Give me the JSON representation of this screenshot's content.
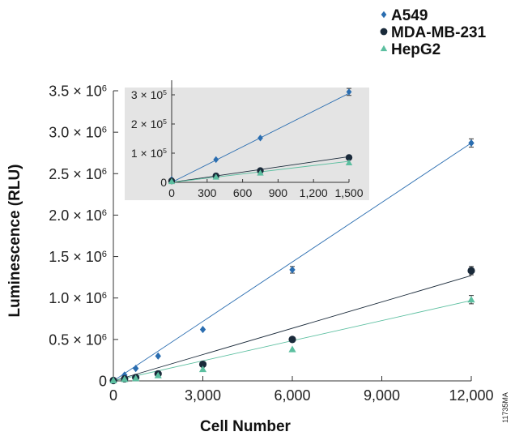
{
  "chart_data": [
    {
      "type": "scatter",
      "title": "",
      "xlabel": "Cell Number",
      "ylabel": "Luminescence (RLU)",
      "xlim": [
        0,
        12000
      ],
      "ylim": [
        0,
        3500000
      ],
      "xticks": [
        0,
        3000,
        6000,
        9000,
        12000
      ],
      "xtick_labels": [
        "0",
        "3,000",
        "6,000",
        "9,000",
        "12,000"
      ],
      "yticks": [
        0,
        500000,
        1000000,
        1500000,
        2000000,
        2500000,
        3000000,
        3500000
      ],
      "ytick_labels": [
        {
          "mant": "0",
          "exp": ""
        },
        {
          "mant": "0.5 × 10",
          "exp": "6"
        },
        {
          "mant": "1.0 × 10",
          "exp": "6"
        },
        {
          "mant": "1.5 × 10",
          "exp": "6"
        },
        {
          "mant": "2.0 × 10",
          "exp": "6"
        },
        {
          "mant": "2.5 × 10",
          "exp": "6"
        },
        {
          "mant": "3.0 × 10",
          "exp": "6"
        },
        {
          "mant": "3.5 × 10",
          "exp": "6"
        }
      ],
      "grid": false,
      "legend_position": "top-right",
      "series": [
        {
          "name": "A549",
          "marker": "diamond",
          "color": "#2a6db0",
          "x": [
            0,
            375,
            750,
            1500,
            3000,
            6000,
            12000
          ],
          "y": [
            5000,
            70000,
            150000,
            300000,
            620000,
            1340000,
            2870000
          ],
          "err": [
            0,
            0,
            0,
            0,
            0,
            40000,
            50000
          ],
          "fit": [
            [
              0,
              0
            ],
            [
              12000,
              2870000
            ]
          ]
        },
        {
          "name": "MDA-MB-231",
          "marker": "circle",
          "color": "#1a2a3a",
          "x": [
            0,
            375,
            750,
            1500,
            3000,
            6000,
            12000
          ],
          "y": [
            5000,
            25000,
            40000,
            85000,
            200000,
            500000,
            1330000
          ],
          "err": [
            0,
            0,
            0,
            0,
            0,
            0,
            50000
          ],
          "fit": [
            [
              0,
              0
            ],
            [
              12000,
              1270000
            ]
          ]
        },
        {
          "name": "HepG2",
          "marker": "triangle",
          "color": "#5cbfa0",
          "x": [
            0,
            375,
            750,
            1500,
            3000,
            6000,
            12000
          ],
          "y": [
            5000,
            20000,
            30000,
            65000,
            140000,
            380000,
            980000
          ],
          "err": [
            0,
            0,
            0,
            0,
            0,
            0,
            50000
          ],
          "fit": [
            [
              0,
              0
            ],
            [
              12000,
              970000
            ]
          ]
        }
      ]
    },
    {
      "type": "scatter",
      "title": "",
      "xlabel": "",
      "ylabel": "",
      "xlim": [
        0,
        1500
      ],
      "ylim": [
        0,
        350000
      ],
      "xticks": [
        0,
        300,
        600,
        900,
        1200,
        1500
      ],
      "xtick_labels": [
        "0",
        "300",
        "600",
        "900",
        "1,200",
        "1,500"
      ],
      "yticks": [
        0,
        100000,
        200000,
        300000
      ],
      "ytick_labels": [
        {
          "mant": "0",
          "exp": ""
        },
        {
          "mant": "1 × 10",
          "exp": "5"
        },
        {
          "mant": "2 × 10",
          "exp": "5"
        },
        {
          "mant": "3 × 10",
          "exp": "5"
        }
      ],
      "grid": false,
      "background": "#e4e4e4",
      "series": [
        {
          "name": "A549",
          "marker": "diamond",
          "color": "#2a6db0",
          "x": [
            0,
            375,
            750,
            1500
          ],
          "y": [
            10000,
            78000,
            152000,
            310000
          ],
          "err": [
            0,
            0,
            0,
            12000
          ],
          "fit": [
            [
              0,
              0
            ],
            [
              1500,
              305000
            ]
          ]
        },
        {
          "name": "MDA-MB-231",
          "marker": "circle",
          "color": "#1a2a3a",
          "x": [
            0,
            375,
            750,
            1500
          ],
          "y": [
            5000,
            22000,
            40000,
            85000
          ],
          "err": [
            0,
            0,
            0,
            0
          ],
          "fit": [
            [
              0,
              0
            ],
            [
              1500,
              88000
            ]
          ]
        },
        {
          "name": "HepG2",
          "marker": "triangle",
          "color": "#5cbfa0",
          "x": [
            0,
            375,
            750,
            1500
          ],
          "y": [
            3000,
            18000,
            32000,
            67000
          ],
          "err": [
            0,
            0,
            0,
            0
          ],
          "fit": [
            [
              0,
              0
            ],
            [
              1500,
              72000
            ]
          ]
        }
      ]
    }
  ],
  "legend": {
    "items": [
      {
        "label": "A549",
        "marker": "diamond",
        "color": "#2a6db0"
      },
      {
        "label": "MDA-MB-231",
        "marker": "circle",
        "color": "#1a2a3a"
      },
      {
        "label": "HepG2",
        "marker": "triangle",
        "color": "#5cbfa0"
      }
    ]
  },
  "figure_code": "11735MA"
}
